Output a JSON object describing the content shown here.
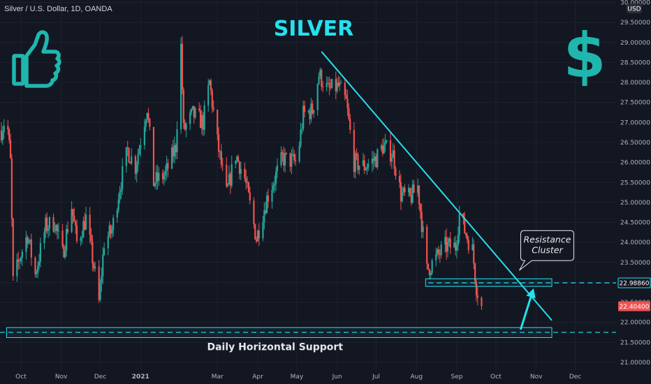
{
  "header": {
    "symbol": "Silver / U.S. Dollar, 1D, OANDA"
  },
  "title": "SILVER",
  "icons": {
    "thumbs_up": "thumbs-up-icon",
    "dollar": "$"
  },
  "annotations": {
    "callout_line1": "Resistance",
    "callout_line2": "Cluster",
    "support_label": "Daily Horizontal Support"
  },
  "colors": {
    "background": "#131722",
    "up_candle": "#26a69a",
    "down_candle": "#ef5350",
    "annotation": "#26e0ee",
    "grid": "#1f2433"
  },
  "chart_data": {
    "type": "candlestick",
    "title": "SILVER",
    "instrument": "Silver / U.S. Dollar, 1D, OANDA",
    "currency": "USD",
    "ylim": [
      21.0,
      30.0
    ],
    "y_ticks": [
      "21.00000",
      "21.50000",
      "22.00000",
      "22.50000",
      "23.00000",
      "23.50000",
      "24.00000",
      "24.50000",
      "25.00000",
      "25.50000",
      "26.00000",
      "26.50000",
      "27.00000",
      "27.50000",
      "28.00000",
      "28.50000",
      "29.00000",
      "29.50000",
      "30.00000"
    ],
    "x_ticks": [
      {
        "label": "Oct",
        "date": "2020-10-01"
      },
      {
        "label": "Nov",
        "date": "2020-11-01"
      },
      {
        "label": "Dec",
        "date": "2020-12-01"
      },
      {
        "label": "2021",
        "date": "2021-01-01"
      },
      {
        "label": "Mar",
        "date": "2021-03-01"
      },
      {
        "label": "Apr",
        "date": "2021-04-01"
      },
      {
        "label": "May",
        "date": "2021-05-01"
      },
      {
        "label": "Jun",
        "date": "2021-06-01"
      },
      {
        "label": "Jul",
        "date": "2021-07-01"
      },
      {
        "label": "Aug",
        "date": "2021-08-01"
      },
      {
        "label": "Sep",
        "date": "2021-09-01"
      },
      {
        "label": "Oct",
        "date": "2021-10-01"
      },
      {
        "label": "Nov",
        "date": "2021-11-01"
      },
      {
        "label": "Dec",
        "date": "2021-12-01"
      }
    ],
    "x_range": [
      "2020-09-16",
      "2021-12-27"
    ],
    "path_points": [
      [
        "2020-09-16",
        26.8
      ],
      [
        "2020-09-20",
        27.2
      ],
      [
        "2020-09-23",
        26.0
      ],
      [
        "2020-09-25",
        23.0
      ],
      [
        "2020-09-30",
        23.6
      ],
      [
        "2020-10-06",
        24.2
      ],
      [
        "2020-10-12",
        23.2
      ],
      [
        "2020-10-20",
        24.4
      ],
      [
        "2020-10-27",
        24.5
      ],
      [
        "2020-11-02",
        23.7
      ],
      [
        "2020-11-09",
        24.9
      ],
      [
        "2020-11-13",
        24.0
      ],
      [
        "2020-11-20",
        24.6
      ],
      [
        "2020-11-27",
        23.2
      ],
      [
        "2020-11-30",
        22.5
      ],
      [
        "2020-12-04",
        24.0
      ],
      [
        "2020-12-10",
        24.3
      ],
      [
        "2020-12-16",
        25.4
      ],
      [
        "2020-12-22",
        26.3
      ],
      [
        "2020-12-28",
        25.9
      ],
      [
        "2021-01-06",
        27.4
      ],
      [
        "2021-01-11",
        25.5
      ],
      [
        "2021-01-20",
        25.7
      ],
      [
        "2021-01-28",
        26.4
      ],
      [
        "2021-02-01",
        28.9
      ],
      [
        "2021-02-03",
        26.8
      ],
      [
        "2021-02-10",
        27.2
      ],
      [
        "2021-02-18",
        27.0
      ],
      [
        "2021-02-23",
        28.0
      ],
      [
        "2021-03-01",
        26.5
      ],
      [
        "2021-03-08",
        25.2
      ],
      [
        "2021-03-15",
        26.2
      ],
      [
        "2021-03-22",
        25.6
      ],
      [
        "2021-03-31",
        24.1
      ],
      [
        "2021-04-08",
        25.1
      ],
      [
        "2021-04-20",
        26.1
      ],
      [
        "2021-05-01",
        26.0
      ],
      [
        "2021-05-06",
        27.2
      ],
      [
        "2021-05-13",
        27.3
      ],
      [
        "2021-05-18",
        28.2
      ],
      [
        "2021-05-25",
        27.8
      ],
      [
        "2021-06-02",
        27.9
      ],
      [
        "2021-06-08",
        27.5
      ],
      [
        "2021-06-14",
        26.0
      ],
      [
        "2021-06-22",
        25.9
      ],
      [
        "2021-07-01",
        26.1
      ],
      [
        "2021-07-06",
        26.4
      ],
      [
        "2021-07-14",
        26.2
      ],
      [
        "2021-07-20",
        25.2
      ],
      [
        "2021-07-27",
        25.1
      ],
      [
        "2021-08-02",
        25.4
      ],
      [
        "2021-08-05",
        24.5
      ],
      [
        "2021-08-09",
        23.3
      ],
      [
        "2021-08-16",
        23.6
      ],
      [
        "2021-08-23",
        23.9
      ],
      [
        "2021-08-31",
        23.9
      ],
      [
        "2021-09-03",
        24.7
      ],
      [
        "2021-09-07",
        24.3
      ],
      [
        "2021-09-13",
        23.8
      ],
      [
        "2021-09-16",
        22.9
      ],
      [
        "2021-09-20",
        22.4
      ]
    ],
    "last_price": 22.404,
    "last_price_label": "22.40400",
    "resistance_level": 22.9886,
    "resistance_label": "22.98860",
    "resistance_zone": {
      "price_low": 22.9,
      "price_high": 23.09,
      "from": "2021-08-08",
      "to": "2021-11-13"
    },
    "support_level": 21.75,
    "support_zone": {
      "price_low": 21.62,
      "price_high": 21.87,
      "from": "2020-09-20",
      "to": "2021-11-13"
    },
    "trendline": {
      "from": [
        "2021-05-20",
        28.77
      ],
      "to": [
        "2021-11-13",
        22.05
      ]
    },
    "arrow": {
      "from": [
        "2021-10-20",
        21.82
      ],
      "to": [
        "2021-10-30",
        22.85
      ]
    },
    "callout_anchor": [
      "2021-10-19",
      23.3
    ]
  }
}
